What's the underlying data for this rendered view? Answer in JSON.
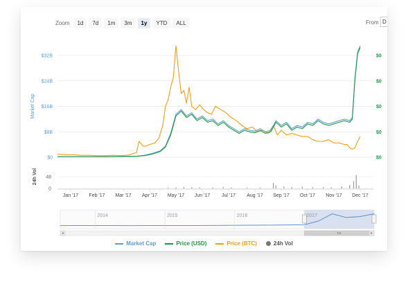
{
  "zoom": {
    "label": "Zoom",
    "buttons": [
      "1d",
      "7d",
      "1m",
      "3m",
      "1y",
      "YTD",
      "ALL"
    ],
    "active": "1y"
  },
  "from": {
    "label": "From",
    "value": "D"
  },
  "legend": [
    {
      "name": "Market Cap",
      "color": "#5b9bd5",
      "kind": "line"
    },
    {
      "name": "Price (USD)",
      "color": "#1a9641",
      "kind": "line"
    },
    {
      "name": "Price (BTC)",
      "color": "#f39c12",
      "kind": "line"
    },
    {
      "name": "24h Vol",
      "color": "#777777",
      "kind": "dot"
    }
  ],
  "chart_data": {
    "type": "line",
    "x_ticks": [
      "Jan '17",
      "Feb '17",
      "Mar '17",
      "Apr '17",
      "May '17",
      "Jun '17",
      "Jul '17",
      "Aug '17",
      "Sep '17",
      "Oct '17",
      "Nov '17",
      "Dec '17"
    ],
    "ylabel": "Market Cap",
    "y_ticks": [
      "$0",
      "$8B",
      "$16B",
      "$24B",
      "$32B"
    ],
    "ylim": [
      0,
      32
    ],
    "y_right_ticks": [
      "$0",
      "$0",
      "$0",
      "$0",
      "$0"
    ],
    "y_right_color": "#1a9641",
    "vol_label": "24h Vol",
    "vol_ticks": [
      "0",
      "48"
    ],
    "vol_ylim": [
      0,
      96
    ],
    "series": [
      {
        "name": "Price (BTC)",
        "color": "#f39c12",
        "x": [
          0,
          0.3,
          0.6,
          0.9,
          1.2,
          1.5,
          1.8,
          2.1,
          2.4,
          2.7,
          3,
          3.1,
          3.25,
          3.35,
          3.5,
          3.7,
          3.85,
          4,
          4.1,
          4.2,
          4.3,
          4.4,
          4.5,
          4.6,
          4.7,
          4.8,
          4.9,
          5,
          5.1,
          5.25,
          5.4,
          5.55,
          5.7,
          5.85,
          6,
          6.2,
          6.4,
          6.6,
          6.8,
          7,
          7.2,
          7.4,
          7.6,
          7.8,
          8,
          8.2,
          8.35,
          8.5,
          8.7,
          8.9,
          9.1,
          9.3,
          9.5,
          9.7,
          9.9,
          10.1,
          10.3,
          10.5,
          10.7,
          10.9,
          11,
          11.1,
          11.2,
          11.3,
          11.4,
          11.5
        ],
        "y": [
          1.0,
          0.8,
          0.8,
          0.6,
          0.6,
          0.5,
          0.5,
          0.6,
          0.5,
          0.7,
          1.5,
          5.0,
          3.5,
          3.5,
          4.0,
          4.5,
          6.0,
          10.0,
          16.0,
          18.0,
          22.0,
          25.0,
          35.0,
          27.0,
          20.0,
          21.0,
          17.0,
          22.0,
          16.0,
          15.0,
          16.5,
          15.0,
          14.0,
          13.5,
          16.0,
          15.0,
          14.0,
          12.5,
          11.5,
          10.0,
          9.0,
          9.5,
          8.0,
          8.5,
          7.5,
          10.0,
          7.0,
          8.5,
          7.0,
          7.5,
          7.0,
          6.5,
          6.5,
          5.5,
          5.0,
          5.0,
          5.5,
          4.5,
          4.5,
          4.0,
          4.0,
          3.0,
          2.5,
          3.0,
          5.0,
          6.5
        ]
      },
      {
        "name": "Market Cap",
        "color": "#5b9bd5",
        "x": [
          0,
          1,
          2,
          3,
          3.3,
          3.6,
          3.9,
          4.1,
          4.3,
          4.5,
          4.7,
          4.9,
          5.1,
          5.3,
          5.5,
          5.7,
          5.9,
          6.1,
          6.3,
          6.5,
          6.7,
          6.9,
          7.1,
          7.3,
          7.5,
          7.7,
          7.9,
          8.1,
          8.3,
          8.5,
          8.7,
          8.9,
          9.1,
          9.3,
          9.5,
          9.7,
          9.9,
          10.1,
          10.3,
          10.5,
          10.7,
          10.9,
          11.1,
          11.2,
          11.3,
          11.4,
          11.5
        ],
        "y": [
          0.2,
          0.2,
          0.2,
          0.3,
          0.6,
          1.2,
          2.0,
          3.5,
          7.5,
          13.5,
          15.0,
          13.0,
          14.0,
          12.0,
          13.0,
          11.5,
          12.0,
          10.5,
          11.5,
          10.0,
          9.0,
          8.0,
          9.0,
          8.5,
          8.2,
          9.0,
          8.0,
          8.5,
          11.5,
          10.0,
          11.0,
          9.0,
          10.0,
          9.5,
          11.0,
          10.5,
          12.0,
          11.0,
          10.5,
          11.0,
          11.5,
          12.0,
          11.5,
          12.5,
          25.0,
          33.0,
          35.0
        ]
      },
      {
        "name": "Price (USD)",
        "color": "#1a9641",
        "x": [
          0,
          1,
          2,
          3,
          3.3,
          3.6,
          3.9,
          4.1,
          4.3,
          4.5,
          4.7,
          4.9,
          5.1,
          5.3,
          5.5,
          5.7,
          5.9,
          6.1,
          6.3,
          6.5,
          6.7,
          6.9,
          7.1,
          7.3,
          7.5,
          7.7,
          7.9,
          8.1,
          8.3,
          8.5,
          8.7,
          8.9,
          9.1,
          9.3,
          9.5,
          9.7,
          9.9,
          10.1,
          10.3,
          10.5,
          10.7,
          10.9,
          11.1,
          11.2,
          11.3,
          11.4,
          11.5
        ],
        "y": [
          0.2,
          0.2,
          0.2,
          0.3,
          0.5,
          1.0,
          1.8,
          3.2,
          7.0,
          13.0,
          14.5,
          12.5,
          13.5,
          11.5,
          12.5,
          11.0,
          11.5,
          10.0,
          11.0,
          9.5,
          8.5,
          7.5,
          8.5,
          8.0,
          7.7,
          8.5,
          7.5,
          8.0,
          11.0,
          9.5,
          10.5,
          8.5,
          9.5,
          9.0,
          10.5,
          10.0,
          11.5,
          10.5,
          10.0,
          10.5,
          11.0,
          11.5,
          11.0,
          12.0,
          24.5,
          32.5,
          34.5
        ]
      }
    ],
    "volume": {
      "x": [
        4.2,
        4.5,
        4.8,
        5.1,
        5.4,
        5.9,
        6.3,
        6.6,
        7.2,
        7.7,
        8.2,
        8.3,
        8.6,
        8.9,
        9.3,
        9.7,
        10.1,
        10.4,
        10.8,
        11.1,
        11.25,
        11.35,
        11.45
      ],
      "y": [
        3,
        4,
        6,
        5,
        4,
        3,
        6,
        4,
        3,
        4,
        22,
        12,
        8,
        6,
        7,
        5,
        6,
        5,
        8,
        14,
        30,
        55,
        12
      ]
    },
    "navigator": {
      "labels": [
        "2014",
        "2015",
        "2016",
        "2017"
      ],
      "x": [
        2013.5,
        2014,
        2014.5,
        2015,
        2015.5,
        2016,
        2016.5,
        2017,
        2017.2,
        2017.4,
        2017.6,
        2017.8,
        2018
      ],
      "y": [
        0.5,
        0.6,
        0.5,
        0.6,
        0.6,
        0.7,
        0.8,
        1.0,
        3.0,
        7.0,
        5.0,
        5.5,
        7.0
      ],
      "xlim": [
        2013.5,
        2018
      ],
      "selected": [
        2017,
        2018
      ]
    }
  }
}
